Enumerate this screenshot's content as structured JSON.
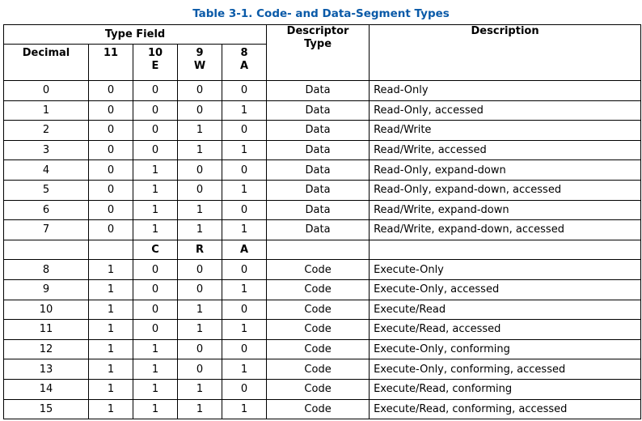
{
  "title": "Table 3-1.  Code- and Data-Segment Types",
  "header": {
    "type_field": "Type Field",
    "decimal": "Decimal",
    "bit11": "11",
    "bit10": "10",
    "bit10_letter": "E",
    "bit9": "9",
    "bit9_letter": "W",
    "bit8": "8",
    "bit8_letter": "A",
    "descriptor_type_line1": "Descriptor",
    "descriptor_type_line2": "Type",
    "description": "Description"
  },
  "data_rows": [
    {
      "dec": "0",
      "b11": "0",
      "b10": "0",
      "b9": "0",
      "b8": "0",
      "type": "Data",
      "desc": "Read-Only"
    },
    {
      "dec": "1",
      "b11": "0",
      "b10": "0",
      "b9": "0",
      "b8": "1",
      "type": "Data",
      "desc": "Read-Only, accessed"
    },
    {
      "dec": "2",
      "b11": "0",
      "b10": "0",
      "b9": "1",
      "b8": "0",
      "type": "Data",
      "desc": "Read/Write"
    },
    {
      "dec": "3",
      "b11": "0",
      "b10": "0",
      "b9": "1",
      "b8": "1",
      "type": "Data",
      "desc": "Read/Write, accessed"
    },
    {
      "dec": "4",
      "b11": "0",
      "b10": "1",
      "b9": "0",
      "b8": "0",
      "type": "Data",
      "desc": "Read-Only, expand-down"
    },
    {
      "dec": "5",
      "b11": "0",
      "b10": "1",
      "b9": "0",
      "b8": "1",
      "type": "Data",
      "desc": "Read-Only, expand-down, accessed"
    },
    {
      "dec": "6",
      "b11": "0",
      "b10": "1",
      "b9": "1",
      "b8": "0",
      "type": "Data",
      "desc": "Read/Write, expand-down"
    },
    {
      "dec": "7",
      "b11": "0",
      "b10": "1",
      "b9": "1",
      "b8": "1",
      "type": "Data",
      "desc": "Read/Write, expand-down, accessed"
    }
  ],
  "code_subheader": {
    "b10": "C",
    "b9": "R",
    "b8": "A"
  },
  "code_rows": [
    {
      "dec": "8",
      "b11": "1",
      "b10": "0",
      "b9": "0",
      "b8": "0",
      "type": "Code",
      "desc": "Execute-Only"
    },
    {
      "dec": "9",
      "b11": "1",
      "b10": "0",
      "b9": "0",
      "b8": "1",
      "type": "Code",
      "desc": "Execute-Only, accessed"
    },
    {
      "dec": "10",
      "b11": "1",
      "b10": "0",
      "b9": "1",
      "b8": "0",
      "type": "Code",
      "desc": "Execute/Read"
    },
    {
      "dec": "11",
      "b11": "1",
      "b10": "0",
      "b9": "1",
      "b8": "1",
      "type": "Code",
      "desc": "Execute/Read, accessed"
    },
    {
      "dec": "12",
      "b11": "1",
      "b10": "1",
      "b9": "0",
      "b8": "0",
      "type": "Code",
      "desc": "Execute-Only, conforming"
    },
    {
      "dec": "13",
      "b11": "1",
      "b10": "1",
      "b9": "0",
      "b8": "1",
      "type": "Code",
      "desc": "Execute-Only, conforming, accessed"
    },
    {
      "dec": "14",
      "b11": "1",
      "b10": "1",
      "b9": "1",
      "b8": "0",
      "type": "Code",
      "desc": "Execute/Read, conforming"
    },
    {
      "dec": "15",
      "b11": "1",
      "b10": "1",
      "b9": "1",
      "b8": "1",
      "type": "Code",
      "desc": "Execute/Read, conforming, accessed"
    }
  ],
  "colors": {
    "title": "#0a5aa8",
    "border": "#000000",
    "text": "#000000"
  }
}
